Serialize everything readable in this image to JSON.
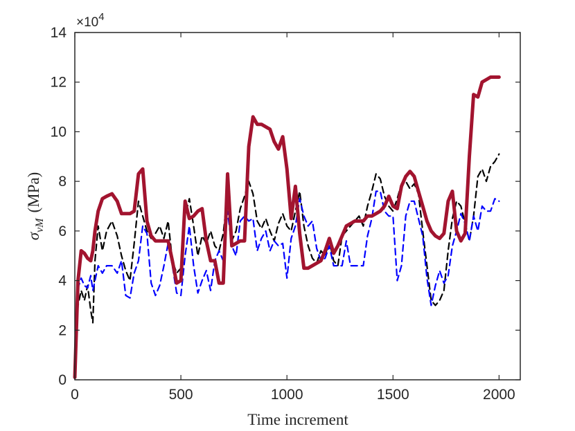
{
  "chart_data": {
    "type": "line",
    "title": "",
    "xlabel": "Time increment",
    "ylabel_symbol": "σ",
    "ylabel_subscript": "vM",
    "ylabel_unit": "(MPa)",
    "y_exponent_prefix": "×10",
    "y_exponent_power": "4",
    "xlim": [
      0,
      2100
    ],
    "ylim": [
      0,
      14
    ],
    "xticks": [
      0,
      500,
      1000,
      1500,
      2000
    ],
    "xtick_labels": [
      "0",
      "500",
      "1000",
      "1500",
      "2000"
    ],
    "yticks": [
      0,
      2,
      4,
      6,
      8,
      10,
      12,
      14
    ],
    "ytick_labels": [
      "0",
      "2",
      "4",
      "6",
      "8",
      "10",
      "12",
      "14"
    ],
    "grid": false,
    "legend": "none",
    "series": [
      {
        "name": "black dashed",
        "color": "#000000",
        "style": "dashed",
        "x": [
          0,
          15,
          30,
          45,
          60,
          75,
          85,
          95,
          110,
          130,
          150,
          175,
          200,
          220,
          240,
          260,
          280,
          300,
          320,
          340,
          360,
          380,
          400,
          420,
          440,
          460,
          480,
          500,
          520,
          540,
          560,
          580,
          600,
          620,
          640,
          660,
          680,
          700,
          720,
          740,
          760,
          780,
          800,
          820,
          840,
          860,
          880,
          900,
          920,
          940,
          960,
          980,
          1000,
          1020,
          1040,
          1060,
          1080,
          1100,
          1120,
          1140,
          1160,
          1180,
          1200,
          1220,
          1240,
          1260,
          1280,
          1300,
          1320,
          1340,
          1360,
          1380,
          1400,
          1420,
          1440,
          1460,
          1480,
          1500,
          1520,
          1540,
          1560,
          1580,
          1600,
          1620,
          1640,
          1660,
          1680,
          1700,
          1720,
          1740,
          1760,
          1780,
          1800,
          1820,
          1840,
          1860,
          1880,
          1900,
          1920,
          1940,
          1960,
          1980,
          2000
        ],
        "values": [
          0.3,
          3.0,
          3.6,
          3.2,
          3.8,
          2.8,
          2.3,
          4.8,
          6.2,
          5.2,
          6.0,
          6.4,
          5.8,
          5.0,
          4.4,
          4.0,
          5.5,
          7.2,
          6.6,
          6.0,
          5.7,
          5.9,
          6.2,
          5.7,
          6.4,
          4.8,
          4.3,
          4.5,
          6.6,
          7.3,
          6.2,
          5.0,
          5.8,
          5.5,
          6.0,
          5.4,
          5.2,
          5.9,
          7.5,
          5.6,
          6.0,
          6.9,
          7.4,
          8.0,
          7.5,
          6.4,
          6.1,
          6.5,
          6.0,
          5.6,
          6.3,
          6.7,
          6.2,
          6.0,
          6.8,
          7.6,
          6.2,
          5.4,
          4.9,
          4.7,
          5.2,
          5.0,
          5.6,
          4.8,
          4.6,
          5.8,
          6.0,
          6.2,
          6.4,
          6.6,
          6.2,
          7.0,
          7.6,
          8.3,
          8.1,
          7.4,
          7.0,
          6.8,
          7.3,
          7.9,
          8.0,
          7.7,
          7.9,
          7.5,
          6.0,
          4.6,
          3.2,
          3.0,
          3.2,
          3.6,
          5.2,
          6.5,
          7.2,
          7.0,
          6.3,
          5.6,
          6.6,
          8.2,
          8.5,
          8.0,
          8.6,
          8.8,
          9.1
        ]
      },
      {
        "name": "blue dashed",
        "color": "#0000FF",
        "style": "dashed",
        "x": [
          0,
          15,
          30,
          45,
          60,
          75,
          85,
          95,
          110,
          130,
          150,
          175,
          200,
          220,
          240,
          260,
          280,
          300,
          320,
          340,
          360,
          380,
          400,
          420,
          440,
          460,
          480,
          500,
          520,
          540,
          560,
          580,
          600,
          620,
          640,
          660,
          680,
          700,
          720,
          740,
          760,
          780,
          800,
          820,
          840,
          860,
          880,
          900,
          920,
          940,
          960,
          980,
          1000,
          1020,
          1040,
          1060,
          1080,
          1100,
          1120,
          1140,
          1160,
          1180,
          1200,
          1220,
          1240,
          1260,
          1280,
          1300,
          1320,
          1340,
          1360,
          1380,
          1400,
          1420,
          1440,
          1460,
          1480,
          1500,
          1520,
          1540,
          1560,
          1580,
          1600,
          1620,
          1640,
          1660,
          1680,
          1700,
          1720,
          1740,
          1760,
          1780,
          1800,
          1820,
          1840,
          1860,
          1880,
          1900,
          1920,
          1940,
          1960,
          1980,
          2000
        ],
        "values": [
          0.3,
          3.7,
          4.1,
          3.8,
          3.7,
          4.2,
          3.6,
          4.0,
          4.6,
          4.3,
          4.6,
          4.6,
          4.3,
          4.8,
          3.4,
          3.3,
          4.3,
          4.8,
          6.2,
          5.9,
          3.9,
          3.4,
          3.8,
          4.6,
          5.5,
          4.6,
          3.5,
          3.4,
          5.0,
          6.2,
          4.6,
          3.5,
          4.0,
          4.4,
          3.6,
          4.8,
          5.2,
          4.8,
          6.8,
          5.4,
          5.0,
          6.4,
          6.6,
          6.4,
          6.5,
          5.2,
          5.7,
          6.0,
          5.2,
          5.6,
          5.4,
          5.5,
          4.1,
          5.7,
          6.2,
          7.3,
          6.6,
          6.2,
          6.4,
          5.3,
          4.8,
          4.9,
          5.4,
          4.6,
          4.6,
          4.6,
          5.6,
          4.6,
          4.6,
          4.6,
          4.6,
          5.8,
          6.5,
          7.6,
          7.6,
          6.8,
          6.6,
          6.6,
          4.0,
          4.6,
          6.6,
          7.2,
          7.2,
          6.5,
          5.8,
          4.1,
          3.0,
          3.8,
          4.4,
          3.9,
          4.2,
          5.4,
          6.0,
          6.7,
          6.3,
          5.6,
          6.6,
          6.0,
          7.0,
          6.8,
          6.8,
          7.3,
          7.2
        ]
      },
      {
        "name": "red thick",
        "color": "#A2142F",
        "style": "solid",
        "x": [
          0,
          15,
          30,
          45,
          60,
          75,
          85,
          95,
          110,
          130,
          150,
          175,
          200,
          220,
          240,
          260,
          280,
          300,
          320,
          340,
          360,
          380,
          400,
          420,
          440,
          460,
          480,
          500,
          520,
          540,
          560,
          580,
          600,
          620,
          640,
          660,
          680,
          700,
          720,
          740,
          760,
          780,
          800,
          820,
          840,
          860,
          880,
          900,
          920,
          940,
          960,
          980,
          1000,
          1020,
          1040,
          1060,
          1080,
          1100,
          1120,
          1140,
          1160,
          1180,
          1200,
          1220,
          1240,
          1260,
          1280,
          1300,
          1320,
          1340,
          1360,
          1380,
          1400,
          1420,
          1440,
          1460,
          1480,
          1500,
          1520,
          1540,
          1560,
          1580,
          1600,
          1620,
          1640,
          1660,
          1680,
          1700,
          1720,
          1740,
          1760,
          1780,
          1800,
          1820,
          1840,
          1860,
          1880,
          1900,
          1920,
          1940,
          1960,
          1980,
          2000
        ],
        "values": [
          0.1,
          4.0,
          5.2,
          5.1,
          4.9,
          4.8,
          5.2,
          6.0,
          6.8,
          7.3,
          7.4,
          7.5,
          7.2,
          6.7,
          6.7,
          6.7,
          6.8,
          8.3,
          8.5,
          6.4,
          5.8,
          5.6,
          5.6,
          5.6,
          5.6,
          4.8,
          3.9,
          4.0,
          7.2,
          6.5,
          6.6,
          6.8,
          6.9,
          5.6,
          4.8,
          4.8,
          3.9,
          3.9,
          8.3,
          5.4,
          5.5,
          5.6,
          5.6,
          9.4,
          10.6,
          10.3,
          10.3,
          10.2,
          10.1,
          9.6,
          9.3,
          9.8,
          8.5,
          6.5,
          7.8,
          5.9,
          4.5,
          4.5,
          4.6,
          4.7,
          4.8,
          5.2,
          5.7,
          5.1,
          5.4,
          5.8,
          6.2,
          6.3,
          6.4,
          6.4,
          6.4,
          6.6,
          6.6,
          6.7,
          6.8,
          7.0,
          7.4,
          7.0,
          6.9,
          7.8,
          8.2,
          8.4,
          8.2,
          7.6,
          7.0,
          6.4,
          6.0,
          5.8,
          5.7,
          5.9,
          7.2,
          7.6,
          6.0,
          5.6,
          5.9,
          9.0,
          11.5,
          11.4,
          12.0,
          12.1,
          12.2,
          12.2,
          12.2
        ]
      }
    ]
  }
}
